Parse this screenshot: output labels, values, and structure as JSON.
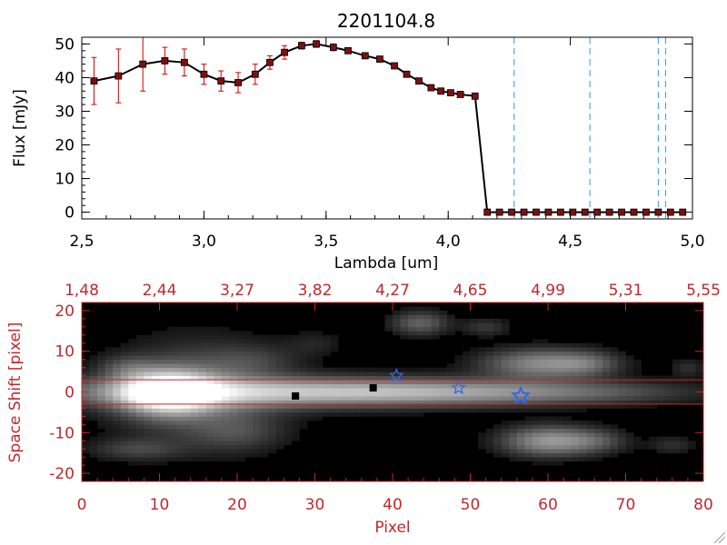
{
  "chart_data": [
    {
      "type": "line",
      "title": "2201104.8",
      "xlabel": "Lambda [um]",
      "ylabel": "Flux [mJy]",
      "xlim": [
        2.5,
        5.0
      ],
      "ylim": [
        -2,
        52
      ],
      "xticks": [
        "2.5",
        "3.0",
        "3.5",
        "4.0",
        "4.5",
        "5.0"
      ],
      "yticks": [
        "0",
        "10",
        "20",
        "30",
        "40",
        "50"
      ],
      "grid": false,
      "series": [
        {
          "marker": "square",
          "line_color": "#000000",
          "marker_color": "#7a1010",
          "errorbar_color": "#cc0000",
          "x": [
            2.55,
            2.65,
            2.75,
            2.84,
            2.92,
            3.0,
            3.07,
            3.14,
            3.21,
            3.27,
            3.33,
            3.4,
            3.46,
            3.53,
            3.59,
            3.66,
            3.72,
            3.78,
            3.83,
            3.88,
            3.93,
            3.97,
            4.01,
            4.05,
            4.11,
            4.16,
            4.21,
            4.26,
            4.31,
            4.36,
            4.41,
            4.46,
            4.51,
            4.56,
            4.61,
            4.66,
            4.71,
            4.76,
            4.81,
            4.86,
            4.91,
            4.96
          ],
          "y": [
            39,
            40.5,
            44,
            45,
            44.5,
            41,
            39,
            38.5,
            41,
            44.5,
            47.5,
            49.5,
            50,
            49,
            48,
            46.5,
            45.5,
            43.5,
            41,
            39,
            37,
            36,
            35.5,
            35,
            34.5,
            0,
            0,
            0,
            0,
            0,
            0,
            0,
            0,
            0,
            0,
            0,
            0,
            0,
            0,
            0,
            0,
            0
          ],
          "yerr": [
            7,
            8,
            8,
            4,
            4,
            3,
            3,
            3,
            3,
            2,
            2,
            1,
            1,
            1,
            0.5,
            0.5,
            0.5,
            0.5,
            0.5,
            0.5,
            0.5,
            0.5,
            0.5,
            0.5,
            0.5,
            0,
            0,
            0,
            0,
            0,
            0,
            0,
            0,
            0,
            0,
            0,
            0,
            0,
            0,
            0,
            0,
            0
          ]
        }
      ],
      "vlines": {
        "x": [
          4.27,
          4.58,
          4.86,
          4.89
        ],
        "color": "#3399dd",
        "style": "dashed"
      }
    },
    {
      "type": "heatmap",
      "xlabel": "Pixel",
      "ylabel": "Space Shift [pixel]",
      "xlim": [
        0,
        80
      ],
      "ylim": [
        -22,
        22
      ],
      "xticks": [
        "0",
        "10",
        "20",
        "30",
        "40",
        "50",
        "60",
        "70",
        "80"
      ],
      "yticks": [
        "-20",
        "-10",
        "0",
        "10",
        "20"
      ],
      "top_axis_ticks": [
        "1.48",
        "2.44",
        "3.27",
        "3.82",
        "4.27",
        "4.65",
        "4.99",
        "5.31",
        "5.55"
      ],
      "extraction_aperture": [
        -3,
        3
      ],
      "aperture_color": "#cc2222",
      "stars": [
        {
          "x": 40.5,
          "y": 4,
          "size": "small"
        },
        {
          "x": 48.5,
          "y": 1,
          "size": "small"
        },
        {
          "x": 56.5,
          "y": -1,
          "size": "large"
        }
      ],
      "star_color": "#3366ee",
      "trace_points": [
        {
          "x": 27.5,
          "y": -1
        },
        {
          "x": 37.5,
          "y": 1
        }
      ],
      "blobs": [
        {
          "x": 11,
          "y": 0,
          "sx": 4,
          "sy": 3.5,
          "v": 1.0
        },
        {
          "x": 25,
          "y": 0,
          "sx": 22,
          "sy": 2.5,
          "v": 0.55
        },
        {
          "x": 45,
          "y": 0,
          "sx": 16,
          "sy": 2,
          "v": 0.28
        },
        {
          "x": 15,
          "y": 0,
          "sx": 7,
          "sy": 8,
          "v": 0.3
        },
        {
          "x": 6,
          "y": 6,
          "sx": 2.5,
          "sy": 2,
          "v": 0.18
        },
        {
          "x": 7,
          "y": -14,
          "sx": 4,
          "sy": 1.8,
          "v": 0.18
        },
        {
          "x": 22,
          "y": 8,
          "sx": 4,
          "sy": 2.5,
          "v": 0.12
        },
        {
          "x": 20,
          "y": -10,
          "sx": 4,
          "sy": 3,
          "v": 0.15
        },
        {
          "x": 43.5,
          "y": 17,
          "sx": 2.5,
          "sy": 2,
          "v": 0.3
        },
        {
          "x": 52,
          "y": 16,
          "sx": 2,
          "sy": 1.5,
          "v": 0.15
        },
        {
          "x": 59,
          "y": 7,
          "sx": 5,
          "sy": 2.5,
          "v": 0.45
        },
        {
          "x": 65,
          "y": 7,
          "sx": 3,
          "sy": 2,
          "v": 0.22
        },
        {
          "x": 60,
          "y": -12,
          "sx": 4,
          "sy": 2.5,
          "v": 0.5
        },
        {
          "x": 66,
          "y": -12,
          "sx": 3,
          "sy": 2,
          "v": 0.2
        },
        {
          "x": 76,
          "y": -13,
          "sx": 2,
          "sy": 1.5,
          "v": 0.12
        },
        {
          "x": 78,
          "y": 6,
          "sx": 1.5,
          "sy": 1.5,
          "v": 0.12
        },
        {
          "x": 65,
          "y": 0,
          "sx": 10,
          "sy": 1.8,
          "v": 0.12
        },
        {
          "x": 30,
          "y": 12,
          "sx": 2.5,
          "sy": 2,
          "v": 0.08
        }
      ]
    }
  ]
}
